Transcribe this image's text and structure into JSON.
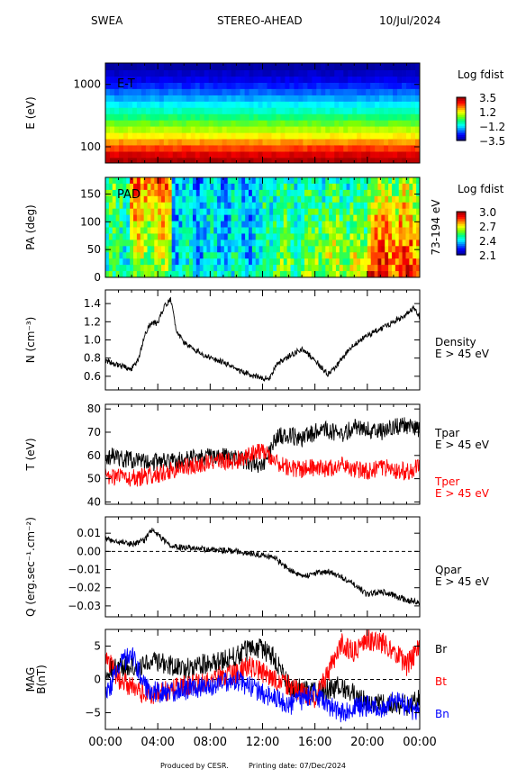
{
  "header": {
    "instrument": "SWEA",
    "spacecraft": "STEREO-AHEAD",
    "date": "10/Jul/2024"
  },
  "footer": {
    "produced_by": "Produced by CESR.",
    "printing_date": "Printing date: 07/Dec/2024"
  },
  "colors": {
    "black": "#000000",
    "red": "#ff0000",
    "blue": "#0000ff",
    "colormap": [
      "#0000a0",
      "#0000ff",
      "#0080ff",
      "#00ffff",
      "#00ff80",
      "#80ff00",
      "#ffff00",
      "#ff8000",
      "#ff0000",
      "#a00000"
    ]
  },
  "x_ticks": [
    "00:00",
    "04:00",
    "08:00",
    "12:00",
    "16:00",
    "20:00",
    "00:00"
  ],
  "chart_data": [
    {
      "type": "heatmap",
      "ylabel": "E (eV)",
      "inset_label": "E-T",
      "yscale": "log",
      "ylim": [
        55,
        2200
      ],
      "yticks": [
        100,
        1000
      ],
      "ytick_labels": [
        "100",
        "1000"
      ],
      "colorbar": {
        "title": "Log fdist",
        "ticks": [
          "3.5",
          "1.2",
          "−1.2",
          "−3.5"
        ],
        "range": [
          -3.5,
          3.5
        ]
      },
      "description_values": {
        "energy_levels_eV": [
          60,
          75,
          95,
          120,
          150,
          190,
          240,
          300,
          380,
          480,
          600,
          760,
          960,
          1200,
          1520,
          1920
        ],
        "log_fdist_by_energy": [
          3.4,
          3.0,
          2.4,
          1.8,
          1.2,
          0.7,
          0.2,
          -0.3,
          -0.8,
          -1.2,
          -1.7,
          -2.1,
          -2.5,
          -2.9,
          -3.2,
          -3.5
        ]
      }
    },
    {
      "type": "heatmap",
      "ylabel": "PA (deg)",
      "inset_label": "PAD",
      "right_label": "73-194 eV",
      "ylim": [
        0,
        180
      ],
      "yticks": [
        0,
        50,
        100,
        150
      ],
      "ytick_labels": [
        "0",
        "50",
        "100",
        "150"
      ],
      "colorbar": {
        "title": "Log fdist",
        "ticks": [
          "3.0",
          "2.7",
          "2.4",
          "2.1"
        ],
        "range": [
          2.1,
          3.0
        ]
      },
      "description_values": {
        "hour_blocks": [
          "00-02",
          "02-05",
          "05-12",
          "12-16",
          "16-20",
          "20-24"
        ],
        "low_pa_log_fdist": [
          2.55,
          2.8,
          2.35,
          2.45,
          2.45,
          2.6
        ],
        "high_pa_log_fdist": [
          2.45,
          2.55,
          2.4,
          2.55,
          2.65,
          2.9
        ]
      }
    },
    {
      "type": "line",
      "ylabel": "N (cm⁻³)",
      "ylim": [
        0.45,
        1.55
      ],
      "yticks": [
        0.6,
        0.8,
        1.0,
        1.2,
        1.4
      ],
      "ytick_labels": [
        "0.6",
        "0.8",
        "1.0",
        "1.2",
        "1.4"
      ],
      "series": [
        {
          "name": "Density",
          "sublabel": "E > 45 eV",
          "color": "#000000",
          "x": [
            0,
            1,
            2,
            2.5,
            3,
            3.5,
            4,
            4.5,
            5,
            5.4,
            6,
            7,
            8,
            9,
            10,
            11,
            12,
            12.5,
            13,
            14,
            15,
            16,
            17,
            18,
            19,
            20,
            21,
            22,
            23,
            23.5,
            24
          ],
          "y": [
            0.78,
            0.72,
            0.68,
            0.78,
            1.05,
            1.2,
            1.18,
            1.38,
            1.45,
            1.1,
            0.98,
            0.88,
            0.8,
            0.76,
            0.68,
            0.62,
            0.58,
            0.57,
            0.72,
            0.82,
            0.9,
            0.78,
            0.62,
            0.78,
            0.95,
            1.05,
            1.12,
            1.2,
            1.28,
            1.36,
            1.25
          ]
        }
      ]
    },
    {
      "type": "line",
      "ylabel": "T (eV)",
      "ylim": [
        39,
        82
      ],
      "yticks": [
        40,
        50,
        60,
        70,
        80
      ],
      "ytick_labels": [
        "40",
        "50",
        "60",
        "70",
        "80"
      ],
      "series": [
        {
          "name": "Tpar",
          "sublabel": "E > 45 eV",
          "color": "#000000",
          "x": [
            0,
            2,
            4,
            6,
            8,
            10,
            11,
            12,
            13,
            14,
            15,
            16,
            17,
            18,
            19,
            20,
            21,
            22,
            23,
            24
          ],
          "y": [
            60,
            58,
            57,
            58,
            60,
            59,
            57,
            55,
            68,
            69,
            67,
            70,
            71,
            69,
            72,
            71,
            70,
            72,
            73,
            71
          ]
        },
        {
          "name": "Tper",
          "sublabel": "E > 45 eV",
          "color": "#ff0000",
          "x": [
            0,
            2,
            4,
            6,
            8,
            10,
            11,
            12,
            13,
            14,
            15,
            16,
            17,
            18,
            19,
            20,
            21,
            22,
            23,
            24
          ],
          "y": [
            51,
            50,
            52,
            55,
            57,
            58,
            60,
            62,
            57,
            55,
            54,
            55,
            54,
            56,
            54,
            53,
            55,
            54,
            53,
            55
          ]
        }
      ]
    },
    {
      "type": "line",
      "ylabel": "Q (erg.sec⁻¹.cm⁻²)",
      "ylim": [
        -0.036,
        0.019
      ],
      "yticks": [
        -0.03,
        -0.02,
        -0.01,
        0.0,
        0.01
      ],
      "ytick_labels": [
        "−0.03",
        "−0.02",
        "−0.01",
        "0.00",
        "0.01"
      ],
      "zero_line": true,
      "series": [
        {
          "name": "Qpar",
          "sublabel": "E > 45 eV",
          "color": "#000000",
          "x": [
            0,
            1,
            2,
            3,
            3.5,
            4,
            5,
            6,
            8,
            10,
            12,
            13,
            14,
            15,
            16,
            17,
            18,
            19,
            20,
            21,
            22,
            23,
            24
          ],
          "y": [
            0.007,
            0.005,
            0.004,
            0.006,
            0.012,
            0.009,
            0.003,
            0.002,
            0.001,
            0.0,
            -0.002,
            -0.004,
            -0.01,
            -0.014,
            -0.012,
            -0.011,
            -0.014,
            -0.018,
            -0.024,
            -0.022,
            -0.024,
            -0.027,
            -0.028
          ]
        }
      ]
    },
    {
      "type": "line",
      "ylabel": "MAG B(nT)",
      "ylim": [
        -7.5,
        7.5
      ],
      "yticks": [
        -5,
        0,
        5
      ],
      "ytick_labels": [
        "−5",
        "0",
        "5"
      ],
      "zero_line": true,
      "series": [
        {
          "name": "Br",
          "color": "#000000",
          "x": [
            0,
            2,
            4,
            6,
            8,
            10,
            11,
            12,
            13,
            14,
            16,
            18,
            20,
            22,
            23,
            24
          ],
          "y": [
            1.5,
            2.0,
            2.5,
            1.5,
            2.5,
            3.5,
            4.5,
            4.5,
            3.0,
            -1.0,
            -2.0,
            -1.0,
            -3.5,
            -3.5,
            -4.0,
            -3.0
          ]
        },
        {
          "name": "Bt",
          "color": "#ff0000",
          "x": [
            0,
            1,
            2,
            3,
            4,
            6,
            8,
            10,
            11,
            12,
            13,
            14,
            16,
            17,
            18,
            19,
            20,
            21,
            22,
            23,
            24
          ],
          "y": [
            4.0,
            0.0,
            -1.0,
            -2.5,
            -2.0,
            -1.0,
            0.0,
            1.0,
            2.0,
            1.0,
            0.0,
            -1.0,
            -3.0,
            1.0,
            5.5,
            4.0,
            6.0,
            5.5,
            4.5,
            2.0,
            5.0
          ]
        },
        {
          "name": "Bn",
          "color": "#0000ff",
          "x": [
            0,
            1,
            2,
            3,
            4,
            6,
            8,
            10,
            12,
            13,
            14,
            16,
            17,
            18,
            19,
            20,
            21,
            22,
            23,
            24
          ],
          "y": [
            -3.0,
            2.0,
            4.0,
            -1.0,
            -2.0,
            -1.5,
            -1.0,
            0.0,
            -2.0,
            -3.0,
            -4.0,
            -2.0,
            -4.0,
            -5.0,
            -4.0,
            -4.0,
            -4.5,
            -3.0,
            -4.0,
            -5.0
          ]
        }
      ]
    }
  ]
}
